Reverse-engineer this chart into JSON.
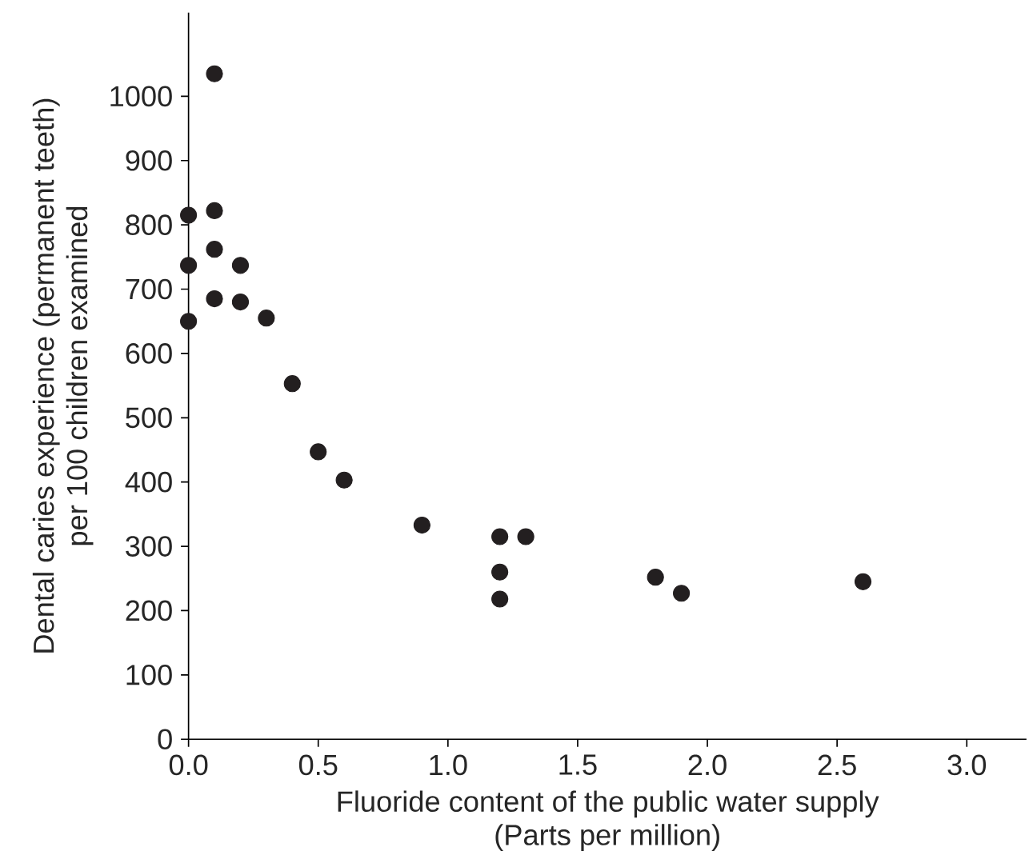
{
  "chart_data": {
    "type": "scatter",
    "xlabel": "Fluoride content of the public water supply\n(Parts per million)",
    "ylabel": "Dental caries experience (permanent teeth)\nper 100 children examined",
    "x": [
      0.1,
      0.0,
      0.1,
      0.1,
      0.0,
      0.2,
      0.1,
      0.2,
      0.0,
      0.3,
      0.4,
      0.5,
      0.6,
      0.9,
      1.2,
      1.3,
      1.2,
      1.2,
      1.8,
      1.9,
      2.6
    ],
    "values": [
      1035,
      815,
      822,
      762,
      737,
      737,
      685,
      680,
      650,
      655,
      553,
      447,
      403,
      333,
      315,
      315,
      260,
      218,
      252,
      227,
      245
    ],
    "color": "#231f20",
    "marker": "circle",
    "xlim": [
      0,
      3.23
    ],
    "ylim": [
      0,
      1130
    ],
    "xticks": [
      {
        "value": 0,
        "label": "0.0"
      },
      {
        "value": 0.5,
        "label": "0.5"
      },
      {
        "value": 1,
        "label": "1.0"
      },
      {
        "value": 1.5,
        "label": "1.5"
      },
      {
        "value": 2,
        "label": "2.0"
      },
      {
        "value": 2.5,
        "label": "2.5"
      },
      {
        "value": 3,
        "label": "3.0"
      }
    ],
    "yticks": [
      0,
      100,
      200,
      300,
      400,
      500,
      600,
      700,
      800,
      900,
      1000
    ],
    "grid": false,
    "legend": false
  }
}
